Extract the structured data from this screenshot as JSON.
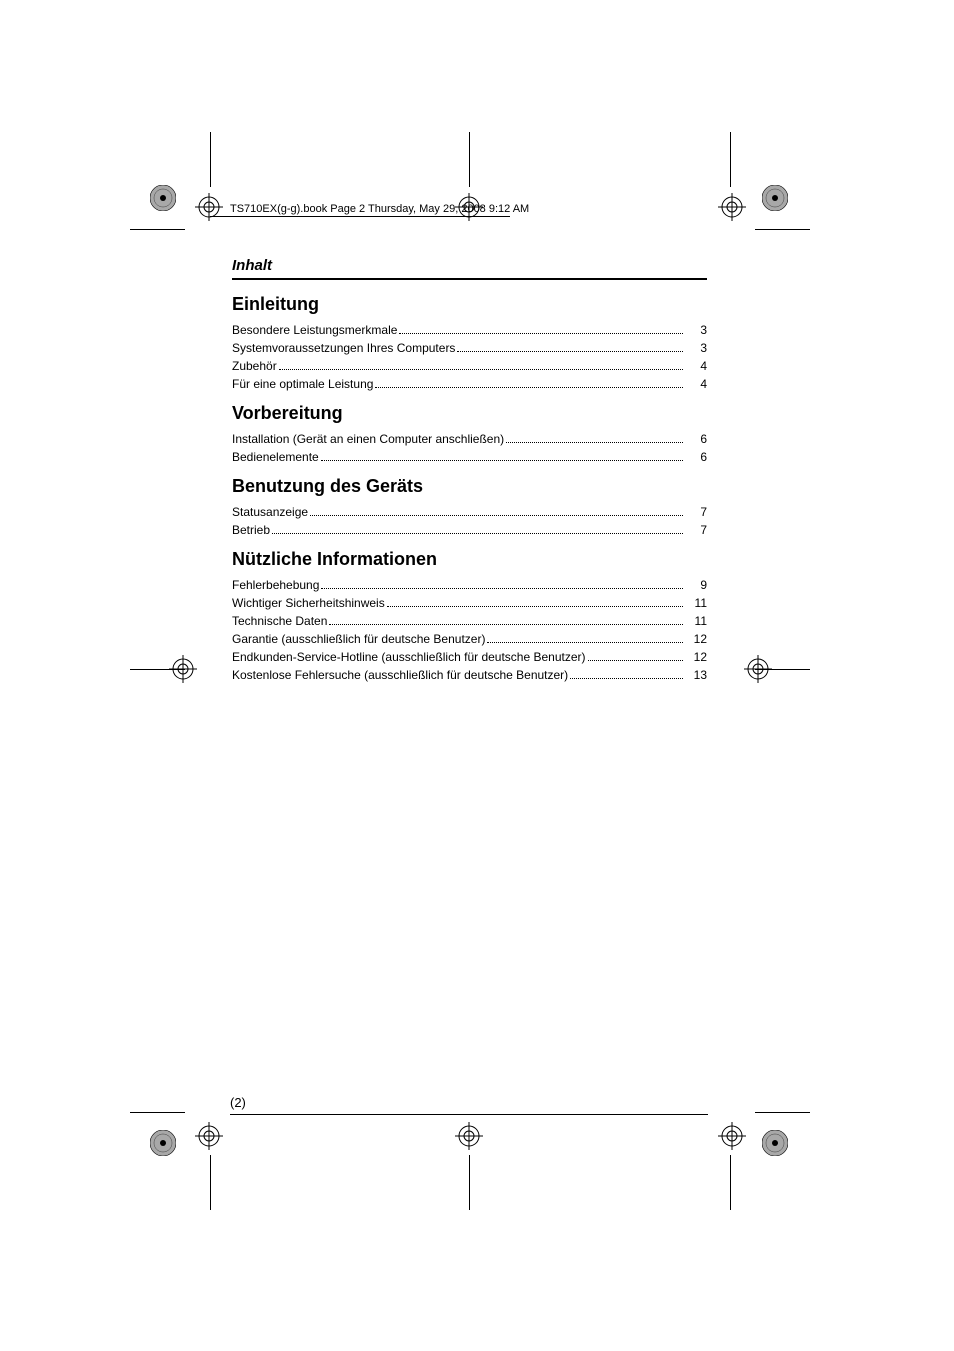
{
  "header_text": "TS710EX(g-g).book  Page 2  Thursday, May 29, 2008  9:12 AM",
  "inhalt": "Inhalt",
  "page_number": "(2)",
  "sections": [
    {
      "title": "Einleitung",
      "entries": [
        {
          "label": "Besondere Leistungsmerkmale",
          "page": "3"
        },
        {
          "label": "Systemvoraussetzungen Ihres Computers",
          "page": "3"
        },
        {
          "label": "Zubehör",
          "page": "4"
        },
        {
          "label": "Für eine optimale Leistung",
          "page": "4"
        }
      ]
    },
    {
      "title": "Vorbereitung",
      "entries": [
        {
          "label": "Installation (Gerät an einen Computer anschließen)",
          "page": "6"
        },
        {
          "label": "Bedienelemente",
          "page": "6"
        }
      ]
    },
    {
      "title": "Benutzung des Geräts",
      "entries": [
        {
          "label": "Statusanzeige",
          "page": "7"
        },
        {
          "label": "Betrieb",
          "page": "7"
        }
      ]
    },
    {
      "title": "Nützliche Informationen",
      "entries": [
        {
          "label": "Fehlerbehebung",
          "page": "9"
        },
        {
          "label": "Wichtiger Sicherheitshinweis",
          "page": "11"
        },
        {
          "label": "Technische Daten",
          "page": "11"
        },
        {
          "label": "Garantie (ausschließlich für deutsche Benutzer)",
          "page": "12"
        },
        {
          "label": "Endkunden-Service-Hotline (ausschließlich für deutsche Benutzer)",
          "page": "12"
        },
        {
          "label": "Kostenlose Fehlersuche (ausschließlich für deutsche Benutzer)",
          "page": "13"
        }
      ]
    }
  ],
  "colors": {
    "text": "#000000",
    "background": "#ffffff",
    "reg_fill": "#808080"
  }
}
